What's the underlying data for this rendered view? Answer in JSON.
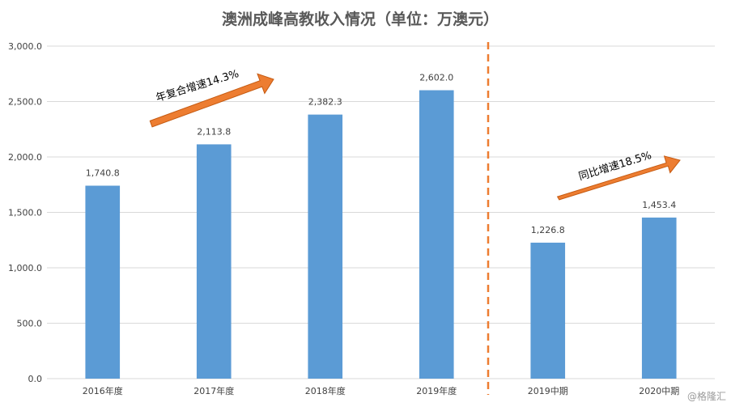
{
  "chart_data": {
    "type": "bar",
    "title": "澳洲成峰高教收入情况（单位：万澳元）",
    "categories": [
      "2016年度",
      "2017年度",
      "2018年度",
      "2019年度",
      "2019中期",
      "2020中期"
    ],
    "series": [
      {
        "values": [
          1740.8,
          2113.8,
          2382.3,
          2602.0,
          1226.8,
          1453.4
        ]
      }
    ],
    "data_labels": [
      "1,740.8",
      "2,113.8",
      "2,382.3",
      "2,602.0",
      "1,226.8",
      "1,453.4"
    ],
    "y_ticks": [
      "0.0",
      "500.0",
      "1,000.0",
      "1,500.0",
      "2,000.0",
      "2,500.0",
      "3,000.0"
    ],
    "ylim": [
      0,
      3000
    ],
    "grid": true,
    "annotations": [
      {
        "text": "年复合增速14.3%"
      },
      {
        "text": "同比增速18.5%"
      }
    ],
    "divider": "dashed vertical line between 2019年度 and 2019中期"
  },
  "colors": {
    "bar": "#5b9bd5",
    "arrow": "#ed7d31",
    "arrow_stroke": "#c55a11",
    "divider": "#ed7d31",
    "grid": "#d9d9d9",
    "text": "#404040",
    "title": "#595959"
  },
  "watermark": "@格隆汇"
}
